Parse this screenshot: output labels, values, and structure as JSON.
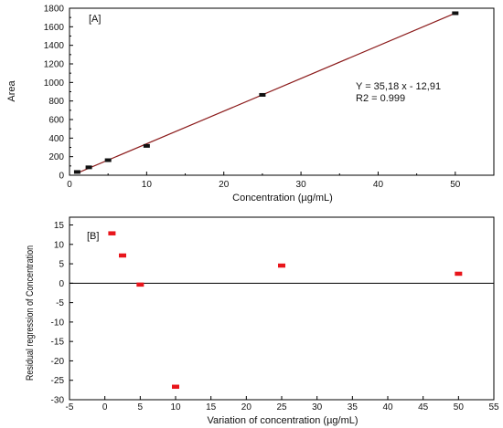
{
  "chart_data": [
    {
      "type": "scatter",
      "panel_label": "[A]",
      "xlabel": "Concentration (µg/mL)",
      "ylabel": "Area",
      "xlim": [
        0,
        55
      ],
      "ylim": [
        0,
        1800
      ],
      "xticks": [
        0,
        10,
        20,
        30,
        40,
        50
      ],
      "yticks": [
        0,
        200,
        400,
        600,
        800,
        1000,
        1200,
        1400,
        1600,
        1800
      ],
      "x": [
        1,
        2.5,
        5,
        10,
        25,
        50
      ],
      "y": [
        35,
        85,
        162,
        316,
        866,
        1746
      ],
      "marker_color": "#111111",
      "fit_line": {
        "slope": 35.18,
        "intercept": -12.91,
        "x_range": [
          1,
          50
        ],
        "color": "#8B1A1A"
      },
      "annotations": [
        "Y = 35,18 x - 12,91",
        "R2 = 0.999"
      ],
      "grid": false
    },
    {
      "type": "scatter",
      "panel_label": "[B]",
      "xlabel": "Variation of concentration (µg/mL)",
      "ylabel": "Residual regression of Concentration",
      "xlim": [
        -5,
        55
      ],
      "ylim": [
        -30,
        17
      ],
      "xticks": [
        -5,
        0,
        5,
        10,
        15,
        20,
        25,
        30,
        35,
        40,
        45,
        50,
        55
      ],
      "yticks": [
        15,
        10,
        5,
        0,
        -5,
        -10,
        -15,
        -20,
        -25,
        -30
      ],
      "x": [
        1,
        2.5,
        5,
        10,
        25,
        50
      ],
      "y": [
        12.9,
        7.2,
        -0.3,
        -26.6,
        4.6,
        2.5
      ],
      "marker_color": "#e8151b",
      "zero_line": true,
      "grid": false
    }
  ]
}
